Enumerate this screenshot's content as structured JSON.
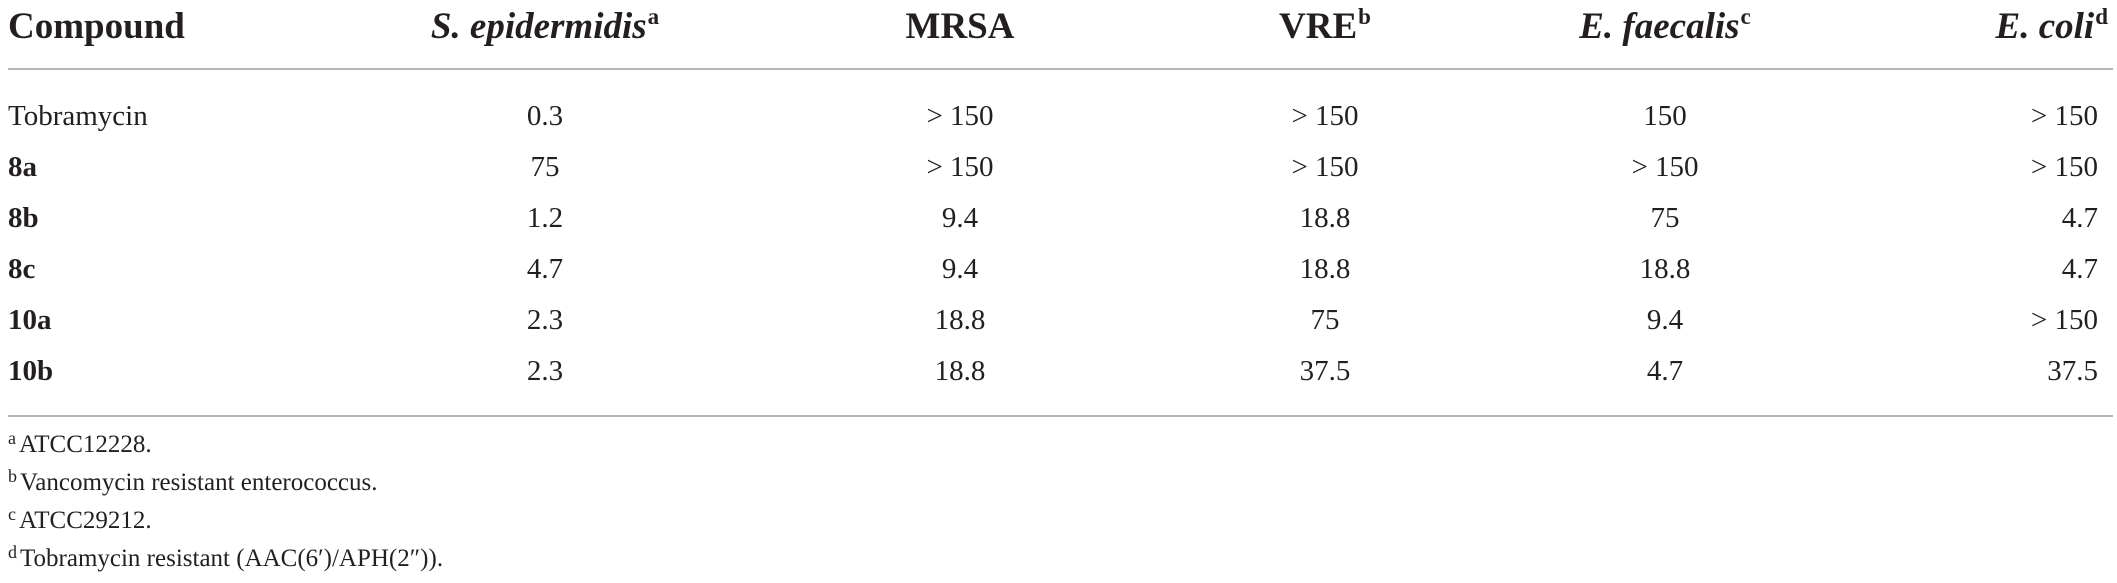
{
  "table": {
    "headers": [
      {
        "text": "Compound",
        "italic": false,
        "sup": ""
      },
      {
        "text": "S. epidermidis",
        "italic": true,
        "sup": "a"
      },
      {
        "text": "MRSA",
        "italic": false,
        "sup": ""
      },
      {
        "text": "VRE",
        "italic": false,
        "sup": "b"
      },
      {
        "text": "E. faecalis",
        "italic": true,
        "sup": "c"
      },
      {
        "text": "E. coli",
        "italic": true,
        "sup": "d"
      }
    ],
    "rows": [
      {
        "compound": "Tobramycin",
        "bold": false,
        "values": [
          "0.3",
          "> 150",
          "> 150",
          "150",
          "> 150"
        ]
      },
      {
        "compound": "8a",
        "bold": true,
        "values": [
          "75",
          "> 150",
          "> 150",
          "> 150",
          "> 150"
        ]
      },
      {
        "compound": "8b",
        "bold": true,
        "values": [
          "1.2",
          "9.4",
          "18.8",
          "75",
          "4.7"
        ]
      },
      {
        "compound": "8c",
        "bold": true,
        "values": [
          "4.7",
          "9.4",
          "18.8",
          "18.8",
          "4.7"
        ]
      },
      {
        "compound": "10a",
        "bold": true,
        "values": [
          "2.3",
          "18.8",
          "75",
          "9.4",
          "> 150"
        ]
      },
      {
        "compound": "10b",
        "bold": true,
        "values": [
          "2.3",
          "18.8",
          "37.5",
          "4.7",
          "37.5"
        ]
      }
    ]
  },
  "footnotes": [
    {
      "mark": "a",
      "text": "ATCC12228."
    },
    {
      "mark": "b",
      "text": "Vancomycin resistant enterococcus."
    },
    {
      "mark": "c",
      "text": "ATCC29212."
    },
    {
      "mark": "d",
      "text": "Tobramycin resistant (AAC(6′)/APH(2″))."
    }
  ]
}
